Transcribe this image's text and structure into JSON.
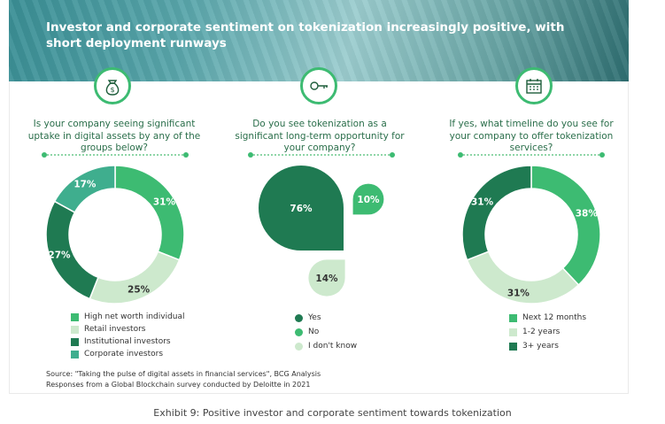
{
  "header": {
    "title": "Investor and corporate sentiment on tokenization increasingly positive, with short deployment runways"
  },
  "colors": {
    "accent": "#3dbb72",
    "dark_green": "#1f7a52",
    "mid_green": "#3dbb72",
    "light_green": "#cde9cd",
    "teal": "#3fae8e"
  },
  "icons": [
    "money-bag-icon",
    "key-icon",
    "calendar-icon"
  ],
  "chart_data": [
    {
      "type": "pie",
      "variant": "donut",
      "question": "Is your company seeing significant uptake in digital assets by any of the groups below?",
      "categories": [
        "High net worth individual",
        "Retail investors",
        "Institutional investors",
        "Corporate investors"
      ],
      "values": [
        31,
        25,
        27,
        17
      ],
      "labels": [
        "31%",
        "25%",
        "27%",
        "17%"
      ],
      "colors": [
        "#3dbb72",
        "#cde9cd",
        "#1f7a52",
        "#3fae8e"
      ]
    },
    {
      "type": "pie",
      "variant": "bubble",
      "question": "Do you see tokenization as a significant long-term opportunity for your company?",
      "categories": [
        "Yes",
        "No",
        "I don't know"
      ],
      "values": [
        76,
        10,
        14
      ],
      "labels": [
        "76%",
        "10%",
        "14%"
      ],
      "colors": [
        "#1f7a52",
        "#3dbb72",
        "#cde9cd"
      ]
    },
    {
      "type": "pie",
      "variant": "donut",
      "question": "If yes, what timeline do you see for your company to offer tokenization services?",
      "categories": [
        "Next 12 months",
        "1-2 years",
        "3+ years"
      ],
      "values": [
        38,
        31,
        31
      ],
      "labels": [
        "38%",
        "31%",
        "31%"
      ],
      "colors": [
        "#3dbb72",
        "#cde9cd",
        "#1f7a52"
      ]
    }
  ],
  "source": {
    "line1": "Source: \"Taking the pulse of digital assets in financial services\", BCG Analysis",
    "line2": "Responses from a Global Blockchain survey conducted by Deloitte in 2021"
  },
  "caption": "Exhibit 9: Positive investor and corporate sentiment towards tokenization"
}
